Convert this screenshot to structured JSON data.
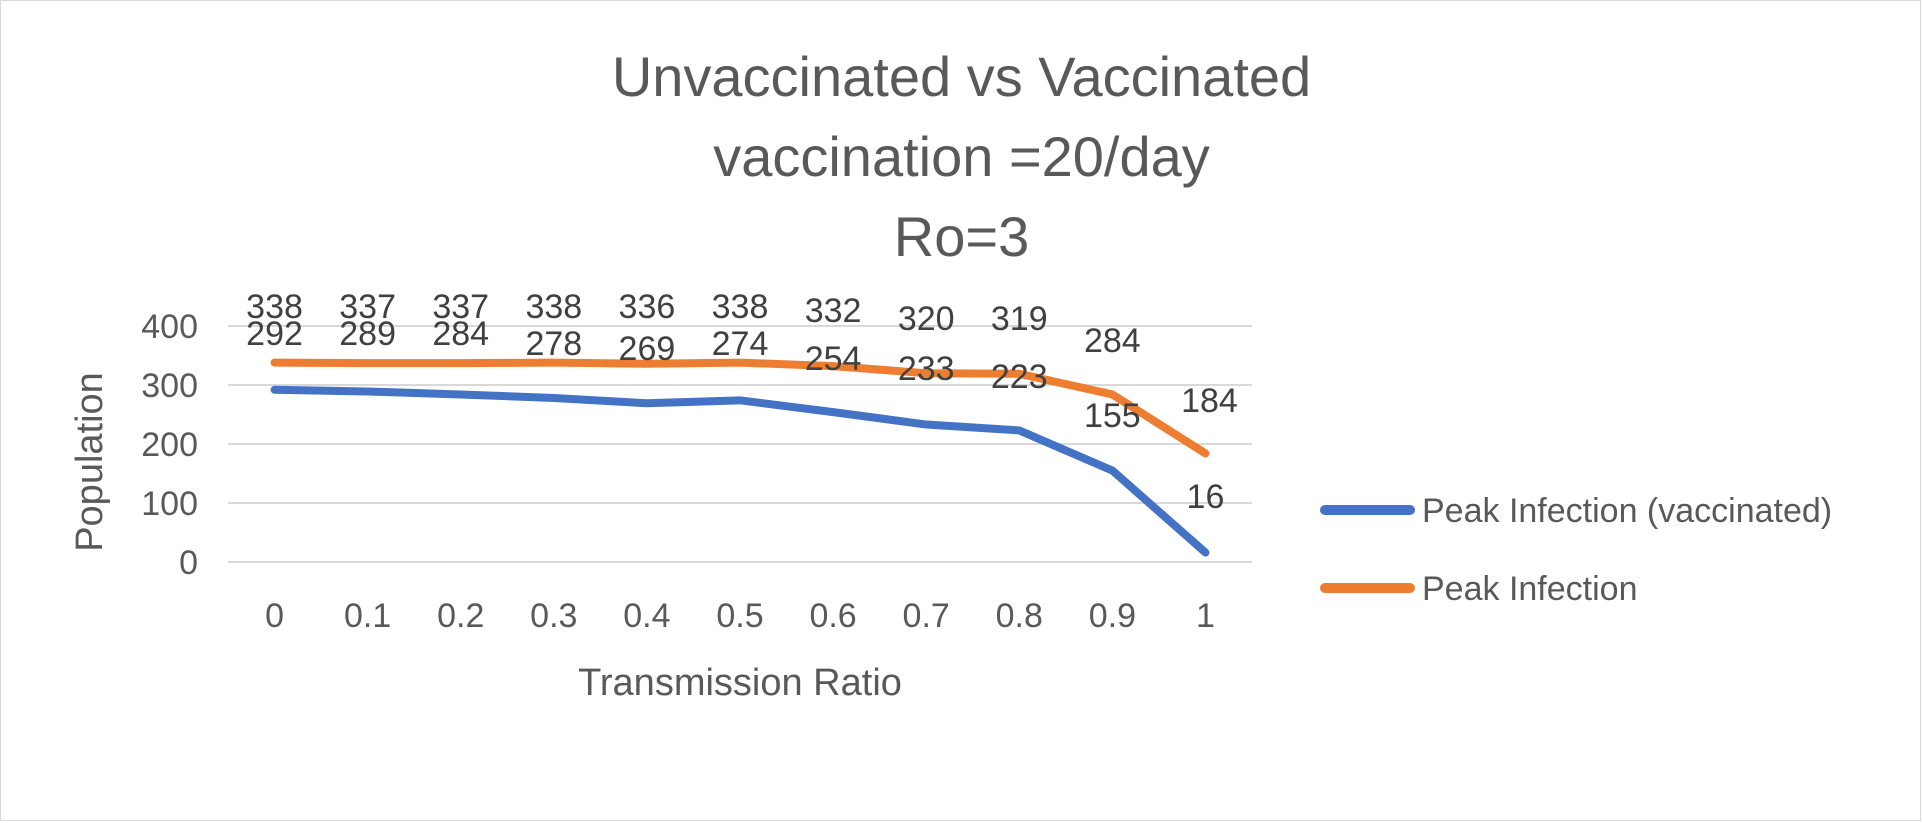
{
  "chart_data": {
    "type": "line",
    "title_lines": [
      "Unvaccinated vs Vaccinated",
      "vaccination =20/day",
      "Ro=3"
    ],
    "xlabel": "Transmission Ratio",
    "ylabel": "Population",
    "categories": [
      "0",
      "0.1",
      "0.2",
      "0.3",
      "0.4",
      "0.5",
      "0.6",
      "0.7",
      "0.8",
      "0.9",
      "1"
    ],
    "ylim": [
      0,
      400
    ],
    "yticks": [
      "0",
      "100",
      "200",
      "300",
      "400"
    ],
    "grid": true,
    "legend_position": "right",
    "series": [
      {
        "name": "Peak Infection (vaccinated)",
        "color": "#4472C4",
        "values": [
          292,
          289,
          284,
          278,
          269,
          274,
          254,
          233,
          223,
          155,
          16
        ]
      },
      {
        "name": "Peak Infection",
        "color": "#ED7D31",
        "values": [
          338,
          337,
          337,
          338,
          336,
          338,
          332,
          320,
          319,
          284,
          184
        ]
      }
    ]
  }
}
